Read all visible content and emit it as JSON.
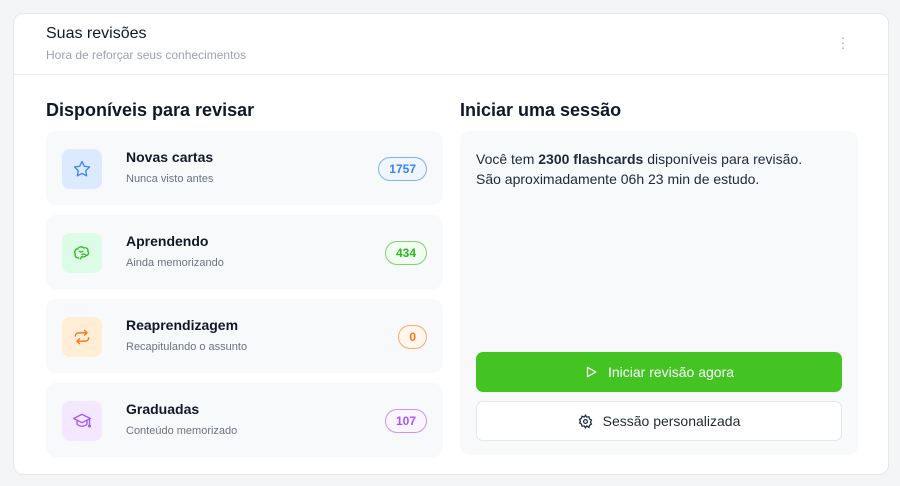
{
  "header": {
    "title": "Suas revisões",
    "subtitle": "Hora de reforçar seus conhecimentos",
    "menu_icon": "more-vertical-icon"
  },
  "available": {
    "title": "Disponíveis para revisar",
    "items": [
      {
        "label": "Novas cartas",
        "sub": "Nunca visto antes",
        "count": "1757",
        "icon": "star-icon",
        "color": "#3b82f6",
        "bg": "#dbeafe",
        "badge_bg": "#eff6ff"
      },
      {
        "label": "Aprendendo",
        "sub": "Ainda memorizando",
        "count": "434",
        "icon": "brain-icon",
        "color": "#2fb81f",
        "bg": "#dcfce7",
        "badge_bg": "#f0fdf0"
      },
      {
        "label": "Reaprendizagem",
        "sub": "Recapitulando o assunto",
        "count": "0",
        "icon": "repeat-icon",
        "color": "#f97316",
        "bg": "#ffedd5",
        "badge_bg": "#fff7ed"
      },
      {
        "label": "Graduadas",
        "sub": "Conteúdo memorizado",
        "count": "107",
        "icon": "graduation-cap-icon",
        "color": "#a855f7",
        "bg": "#f3e8ff",
        "badge_bg": "#faf5ff"
      }
    ]
  },
  "session": {
    "title": "Iniciar uma sessão",
    "text_prefix": "Você tem ",
    "text_bold": "2300 flashcards",
    "text_suffix": " disponíveis para revisão.",
    "text_line2": "São aproximadamente 06h 23 min de estudo.",
    "start_label": "Iniciar revisão agora",
    "custom_label": "Sessão personalizada",
    "accent": "#43c423"
  }
}
